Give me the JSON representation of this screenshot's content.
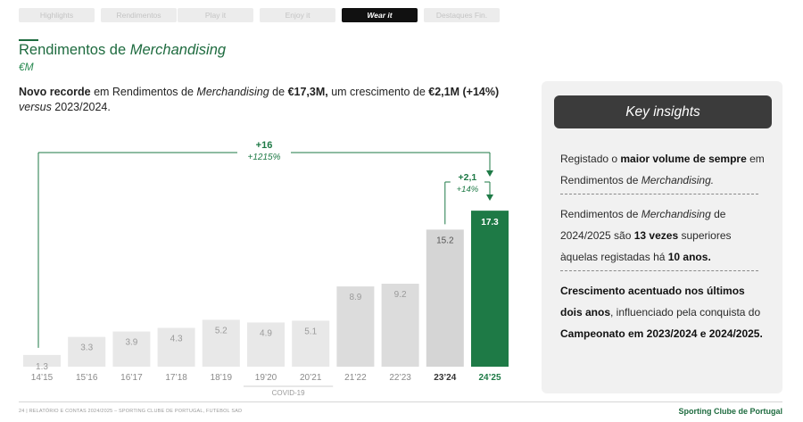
{
  "nav": {
    "tabs": [
      {
        "label": "Highlights",
        "active": false
      },
      {
        "label": "Rendimentos",
        "active": false
      },
      {
        "label": "Play it",
        "active": false
      },
      {
        "label": "Enjoy it",
        "active": false
      },
      {
        "label": "Wear it",
        "active": true
      },
      {
        "label": "Destaques Fin.",
        "active": false
      }
    ]
  },
  "header": {
    "title_main": "Rendimentos de ",
    "title_italic": "Merchandising",
    "unit": "€M"
  },
  "headline": {
    "p1": "Novo recorde",
    "p2": " em Rendimentos de ",
    "p3": "Merchandising",
    "p4": " de ",
    "p5": "€17,3M,",
    "p6": " um crescimento de ",
    "p7": "€2,1M (+14%)",
    "p8": "versus",
    "p9": " 2023/2024."
  },
  "chart_data": {
    "type": "bar",
    "categories": [
      "14’15",
      "15’16",
      "16’17",
      "17’18",
      "18’19",
      "19’20",
      "20’21",
      "21’22",
      "22’23",
      "23’24",
      "24’25"
    ],
    "values": [
      1.3,
      3.3,
      3.9,
      4.3,
      5.2,
      4.9,
      5.1,
      8.9,
      9.2,
      15.2,
      17.3
    ],
    "value_labels": [
      "1.3",
      "3.3",
      "3.9",
      "4.3",
      "5.2",
      "4.9",
      "5.1",
      "8.9",
      "9.2",
      "15.2",
      "17.3"
    ],
    "ylim": [
      0,
      18.5
    ],
    "covid_label": "COVID-19",
    "covid_categories": [
      "19’20",
      "20’21"
    ],
    "annotations": [
      {
        "from": "14’15",
        "to": "24’25",
        "value": "+16",
        "pct": "+1215%"
      },
      {
        "from": "23’24",
        "to": "24’25",
        "value": "+2,1",
        "pct": "+14%"
      }
    ],
    "colors": {
      "old": "#e8e8e8",
      "mid": "#dcdcdc",
      "prev": "#d5d5d5",
      "current": "#1e7a46",
      "accent": "#1e7a46",
      "label_old": "#9a9a9a",
      "label_prev": "#555555"
    }
  },
  "insights": {
    "title": "Key insights",
    "i1": {
      "a": "Registado o ",
      "b": "maior volume de sempre",
      "c": " em Rendimentos de ",
      "d": "Merchandising."
    },
    "i2": {
      "a": "Rendimentos de ",
      "b": "Merchandising",
      "c": " de 2024/2025 são ",
      "d": "13 vezes",
      "e": " superiores àquelas registadas há ",
      "f": "10 anos."
    },
    "i3": {
      "a": "Crescimento acentuado nos últimos dois anos",
      "b": ", influenciado pela conquista do ",
      "c": "Campeonato em 2023/2024 e 2024/2025."
    }
  },
  "footer": {
    "left": "24 | RELATÓRIO E CONTAS 2024/2025 – SPORTING CLUBE DE PORTUGAL, FUTEBOL SAD",
    "right": "Sporting Clube de Portugal"
  }
}
